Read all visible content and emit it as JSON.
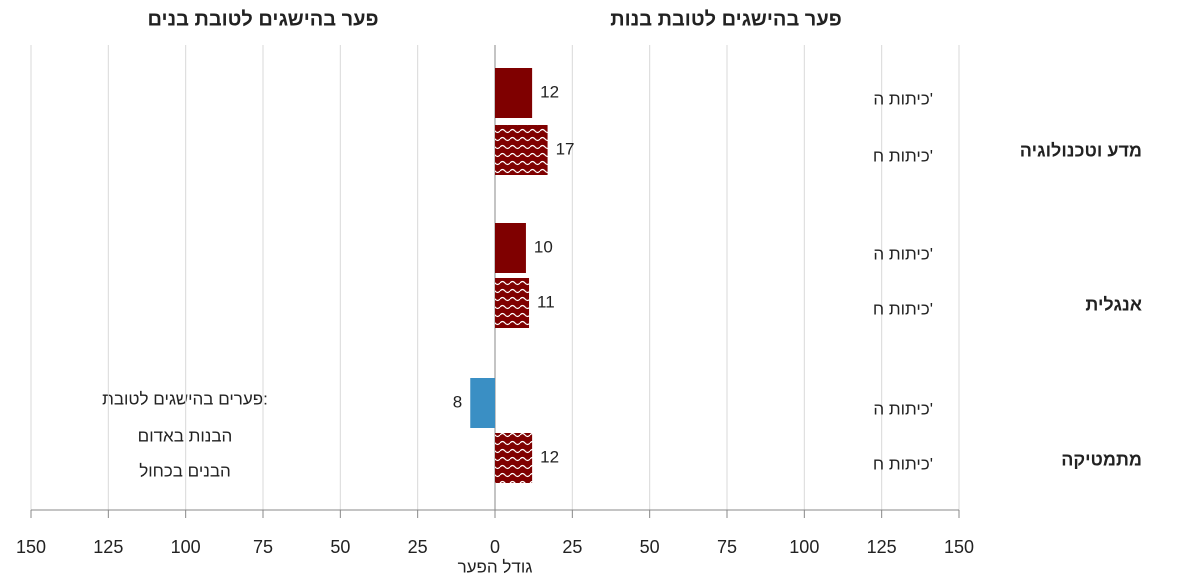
{
  "chart_data": {
    "type": "bar",
    "orientation": "horizontal",
    "title_positive": "פער בהישגים לטובת בנות",
    "title_negative": "פער בהישגים לטובת בנים",
    "xlabel": "גודל הפער",
    "groups": [
      "מדע וטכנולוגיה",
      "אנגלית",
      "מתמטיקה"
    ],
    "categories": [
      "כיתות ה'",
      "כיתות ח'",
      "כיתות ה'",
      "כיתות ח'",
      "כיתות ה'",
      "כיתות ח'"
    ],
    "values": [
      12,
      17,
      10,
      11,
      -8,
      12
    ],
    "value_labels": [
      "12",
      "17",
      "10",
      "11",
      "8",
      "12"
    ],
    "positive_color": "#7f0000",
    "negative_color": "#3a8fc4",
    "axis_positive_color": "#7f0000",
    "axis_negative_color": "#3c78d8",
    "xlim": [
      -150,
      150
    ],
    "xticks": [
      {
        "value": -150,
        "label": "150"
      },
      {
        "value": -125,
        "label": "125"
      },
      {
        "value": -100,
        "label": "100"
      },
      {
        "value": -75,
        "label": "75"
      },
      {
        "value": -50,
        "label": "50"
      },
      {
        "value": -25,
        "label": "25"
      },
      0,
      25,
      50,
      75,
      100,
      125,
      150
    ],
    "grid": true,
    "note": {
      "title": "פערים בהישגים לטובת:",
      "girls": "הבנות באדום",
      "boys": "הבנים בכחול"
    }
  }
}
